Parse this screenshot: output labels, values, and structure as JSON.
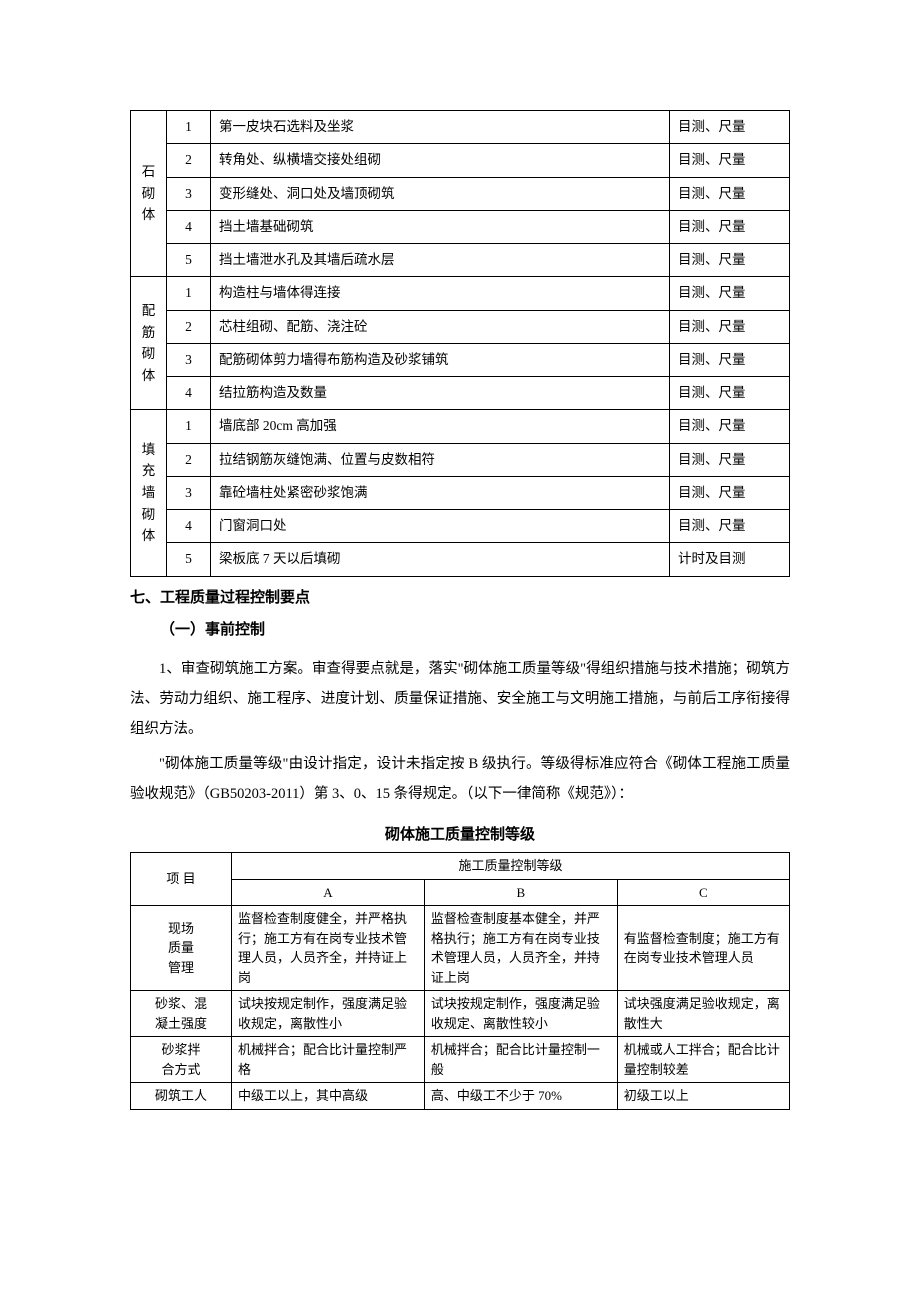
{
  "table1": {
    "groups": [
      {
        "category": "石砌体",
        "rows": [
          {
            "num": "1",
            "desc": "第一皮块石选料及坐浆",
            "method": "目测、尺量"
          },
          {
            "num": "2",
            "desc": "转角处、纵横墙交接处组砌",
            "method": "目测、尺量"
          },
          {
            "num": "3",
            "desc": "变形缝处、洞口处及墙顶砌筑",
            "method": "目测、尺量"
          },
          {
            "num": "4",
            "desc": "挡土墙基础砌筑",
            "method": "目测、尺量"
          },
          {
            "num": "5",
            "desc": "挡土墙泄水孔及其墙后疏水层",
            "method": "目测、尺量"
          }
        ]
      },
      {
        "category": "配筋砌体",
        "rows": [
          {
            "num": "1",
            "desc": "构造柱与墙体得连接",
            "method": "目测、尺量"
          },
          {
            "num": "2",
            "desc": "芯柱组砌、配筋、浇注砼",
            "method": "目测、尺量"
          },
          {
            "num": "3",
            "desc": "配筋砌体剪力墙得布筋构造及砂浆铺筑",
            "method": "目测、尺量"
          },
          {
            "num": "4",
            "desc": "结拉筋构造及数量",
            "method": "目测、尺量"
          }
        ]
      },
      {
        "category": "填充墙砌体",
        "rows": [
          {
            "num": "1",
            "desc": "墙底部 20cm 高加强",
            "method": "目测、尺量"
          },
          {
            "num": "2",
            "desc": "拉结钢筋灰缝饱满、位置与皮数相符",
            "method": "目测、尺量"
          },
          {
            "num": "3",
            "desc": "靠砼墙柱处紧密砂浆饱满",
            "method": "目测、尺量"
          },
          {
            "num": "4",
            "desc": "门窗洞口处",
            "method": "目测、尺量"
          },
          {
            "num": "5",
            "desc": "梁板底 7 天以后填砌",
            "method": "计时及目测"
          }
        ]
      }
    ]
  },
  "section": {
    "heading": "七、工程质量过程控制要点",
    "subheading": "（一）事前控制",
    "para1": "1、审查砌筑施工方案。审查得要点就是，落实\"砌体施工质量等级\"得组织措施与技术措施；砌筑方法、劳动力组织、施工程序、进度计划、质量保证措施、安全施工与文明施工措施，与前后工序衔接得组织方法。",
    "para2": "\"砌体施工质量等级\"由设计指定，设计未指定按 B 级执行。等级得标准应符合《砌体工程施工质量验收规范》（GB50203-2011）第 3、0、15 条得规定。（以下一律简称《规范》）："
  },
  "table2": {
    "title": "砌体施工质量控制等级",
    "header_col1": "项 目",
    "header_span": "施工质量控制等级",
    "cols": [
      "A",
      "B",
      "C"
    ],
    "rows": [
      {
        "label": "现场\n质量\n管理",
        "a": "监督检查制度健全，并严格执行；施工方有在岗专业技术管理人员，人员齐全，并持证上岗",
        "b": "监督检查制度基本健全，并严格执行；施工方有在岗专业技术管理人员，人员齐全，并持证上岗",
        "c": "有监督检查制度；施工方有在岗专业技术管理人员"
      },
      {
        "label": "砂浆、混\n凝土强度",
        "a": "试块按规定制作，强度满足验收规定，离散性小",
        "b": "试块按规定制作，强度满足验收规定、离散性较小",
        "c": "试块强度满足验收规定，离散性大"
      },
      {
        "label": "砂浆拌\n合方式",
        "a": "机械拌合；配合比计量控制严格",
        "b": "机械拌合；配合比计量控制一般",
        "c": "机械或人工拌合；配合比计量控制较差"
      },
      {
        "label": "砌筑工人",
        "a": "中级工以上，其中高级",
        "b": "高、中级工不少于 70%",
        "c": "初级工以上"
      }
    ]
  }
}
